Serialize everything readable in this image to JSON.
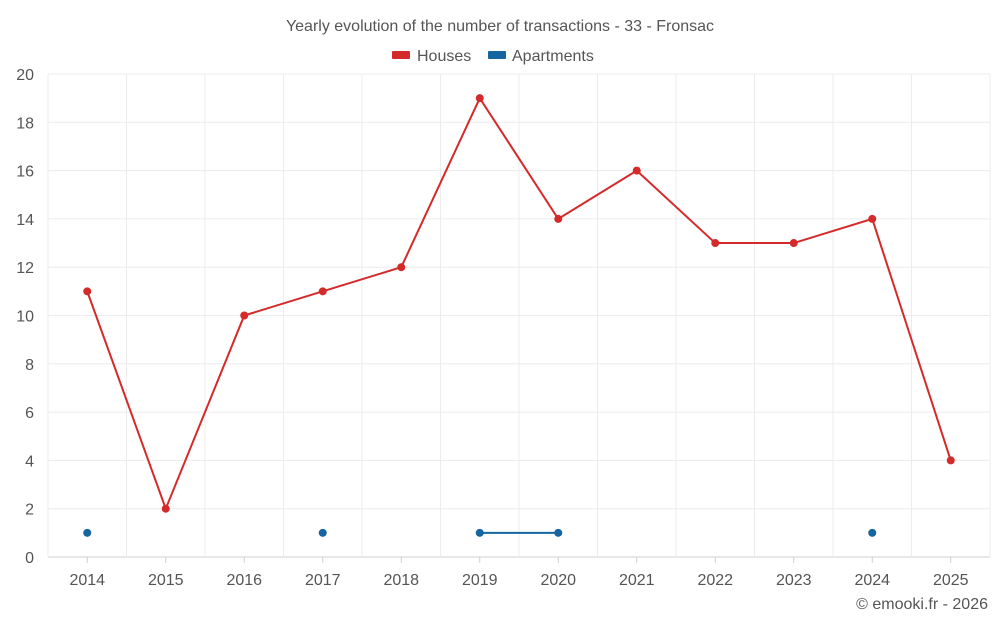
{
  "chart_data": {
    "type": "line",
    "title": "Yearly evolution of the number of transactions - 33 - Fronsac",
    "categories": [
      "2014",
      "2015",
      "2016",
      "2017",
      "2018",
      "2019",
      "2020",
      "2021",
      "2022",
      "2023",
      "2024",
      "2025"
    ],
    "ylim": [
      0,
      20
    ],
    "yticks": [
      0,
      2,
      4,
      6,
      8,
      10,
      12,
      14,
      16,
      18,
      20
    ],
    "grid": true,
    "legend_position": "top-center",
    "series": [
      {
        "name": "Houses",
        "color": "#d42a2a",
        "values": [
          11,
          2,
          10,
          11,
          12,
          19,
          14,
          16,
          13,
          13,
          14,
          4
        ]
      },
      {
        "name": "Apartments",
        "color": "#1565a0",
        "values": [
          1,
          null,
          null,
          1,
          null,
          1,
          1,
          null,
          null,
          null,
          1,
          null
        ]
      }
    ]
  },
  "credit": "© emooki.fr - 2026"
}
